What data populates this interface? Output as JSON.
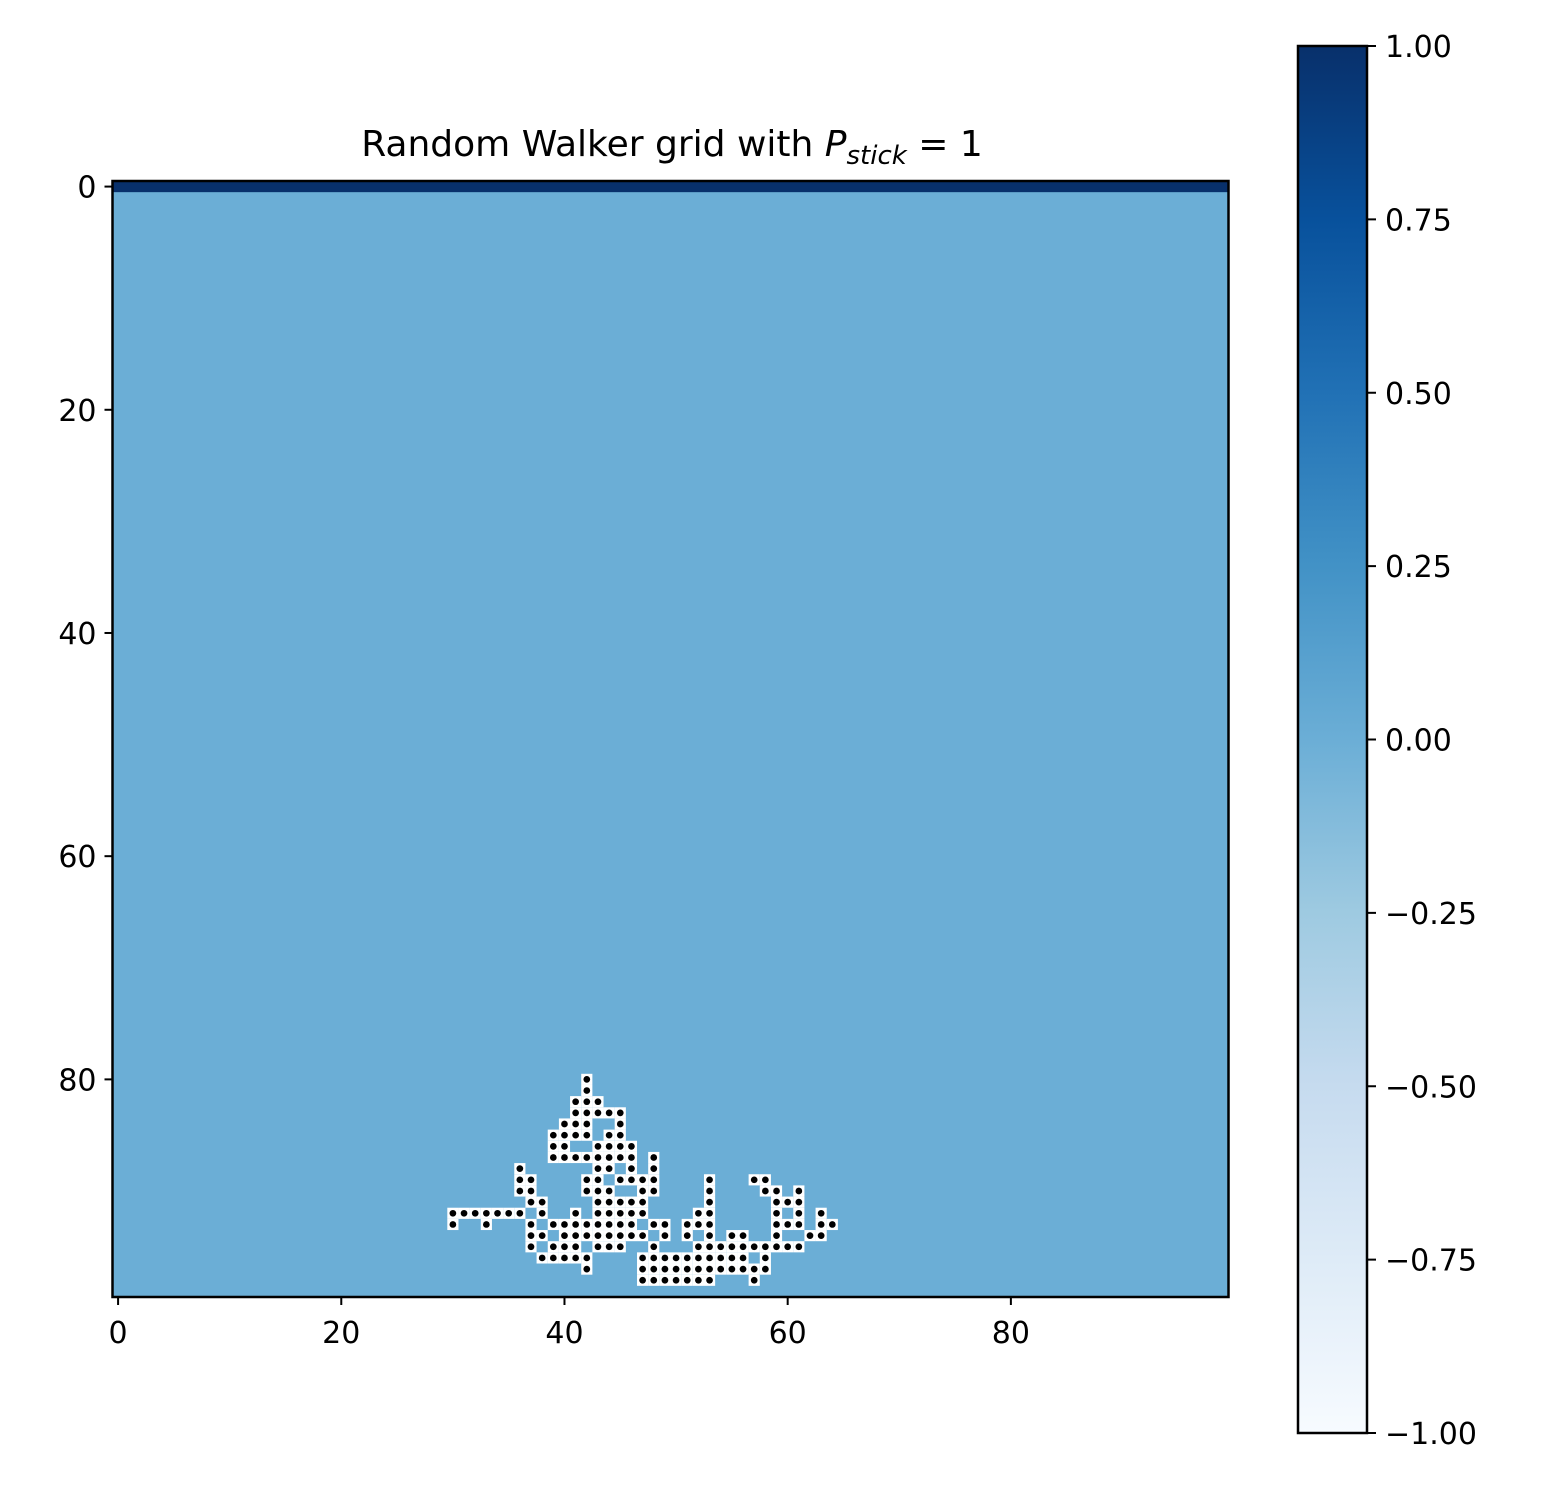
{
  "chart_data": {
    "type": "heatmap",
    "title": {
      "main": "Random Walker grid with ",
      "var": "P",
      "sub": "stick",
      "rest": " = 1"
    },
    "grid_size": [
      100,
      100
    ],
    "background_value": 0,
    "top_row_value": 1,
    "x_ticks": [
      "0",
      "20",
      "40",
      "60",
      "80"
    ],
    "y_ticks": [
      "0",
      "20",
      "40",
      "60",
      "80"
    ],
    "x_tick_values": [
      0,
      20,
      40,
      60,
      80
    ],
    "y_tick_values": [
      0,
      20,
      40,
      60,
      80
    ],
    "colorbar": {
      "colormap": "Blues",
      "range": [
        -1,
        1
      ],
      "ticks": [
        "1.00",
        "0.75",
        "0.50",
        "0.25",
        "0.00",
        "−0.25",
        "−0.50",
        "−0.75",
        "−1.00"
      ],
      "tick_values": [
        1.0,
        0.75,
        0.5,
        0.25,
        0.0,
        -0.25,
        -0.5,
        -0.75,
        -1.0
      ],
      "stops": [
        "#f7fbff",
        "#deebf7",
        "#c6dbef",
        "#9ecae1",
        "#6baed6",
        "#4292c6",
        "#2171b5",
        "#08519c",
        "#08306b"
      ]
    },
    "colors": {
      "background_cell": "#6baed6",
      "top_row_cell": "#08306b",
      "walker_marker": "#000000",
      "walker_cell_edge": "#ffffff"
    },
    "walkers": [
      [
        80,
        42
      ],
      [
        81,
        42
      ],
      [
        82,
        41
      ],
      [
        82,
        42
      ],
      [
        82,
        43
      ],
      [
        83,
        41
      ],
      [
        83,
        42
      ],
      [
        83,
        43
      ],
      [
        83,
        44
      ],
      [
        83,
        45
      ],
      [
        84,
        40
      ],
      [
        84,
        41
      ],
      [
        84,
        42
      ],
      [
        84,
        45
      ],
      [
        85,
        39
      ],
      [
        85,
        40
      ],
      [
        85,
        41
      ],
      [
        85,
        42
      ],
      [
        85,
        44
      ],
      [
        85,
        45
      ],
      [
        86,
        39
      ],
      [
        86,
        40
      ],
      [
        86,
        43
      ],
      [
        86,
        44
      ],
      [
        86,
        45
      ],
      [
        86,
        46
      ],
      [
        87,
        39
      ],
      [
        87,
        40
      ],
      [
        87,
        41
      ],
      [
        87,
        42
      ],
      [
        87,
        43
      ],
      [
        87,
        44
      ],
      [
        87,
        45
      ],
      [
        87,
        46
      ],
      [
        87,
        48
      ],
      [
        88,
        36
      ],
      [
        88,
        43
      ],
      [
        88,
        44
      ],
      [
        88,
        46
      ],
      [
        88,
        48
      ],
      [
        89,
        36
      ],
      [
        89,
        37
      ],
      [
        89,
        42
      ],
      [
        89,
        43
      ],
      [
        89,
        45
      ],
      [
        89,
        46
      ],
      [
        89,
        47
      ],
      [
        89,
        48
      ],
      [
        89,
        53
      ],
      [
        89,
        57
      ],
      [
        89,
        58
      ],
      [
        90,
        36
      ],
      [
        90,
        37
      ],
      [
        90,
        42
      ],
      [
        90,
        43
      ],
      [
        90,
        44
      ],
      [
        90,
        47
      ],
      [
        90,
        48
      ],
      [
        90,
        53
      ],
      [
        90,
        58
      ],
      [
        90,
        59
      ],
      [
        90,
        61
      ],
      [
        91,
        37
      ],
      [
        91,
        38
      ],
      [
        91,
        43
      ],
      [
        91,
        44
      ],
      [
        91,
        45
      ],
      [
        91,
        46
      ],
      [
        91,
        47
      ],
      [
        91,
        53
      ],
      [
        91,
        59
      ],
      [
        91,
        60
      ],
      [
        91,
        61
      ],
      [
        92,
        30
      ],
      [
        92,
        31
      ],
      [
        92,
        32
      ],
      [
        92,
        33
      ],
      [
        92,
        34
      ],
      [
        92,
        35
      ],
      [
        92,
        36
      ],
      [
        92,
        38
      ],
      [
        92,
        41
      ],
      [
        92,
        43
      ],
      [
        92,
        44
      ],
      [
        92,
        45
      ],
      [
        92,
        46
      ],
      [
        92,
        47
      ],
      [
        92,
        52
      ],
      [
        92,
        53
      ],
      [
        92,
        59
      ],
      [
        92,
        61
      ],
      [
        92,
        63
      ],
      [
        93,
        30
      ],
      [
        93,
        33
      ],
      [
        93,
        37
      ],
      [
        93,
        39
      ],
      [
        93,
        40
      ],
      [
        93,
        41
      ],
      [
        93,
        42
      ],
      [
        93,
        43
      ],
      [
        93,
        44
      ],
      [
        93,
        45
      ],
      [
        93,
        46
      ],
      [
        93,
        48
      ],
      [
        93,
        49
      ],
      [
        93,
        51
      ],
      [
        93,
        52
      ],
      [
        93,
        53
      ],
      [
        93,
        59
      ],
      [
        93,
        60
      ],
      [
        93,
        61
      ],
      [
        93,
        63
      ],
      [
        93,
        64
      ],
      [
        94,
        37
      ],
      [
        94,
        38
      ],
      [
        94,
        40
      ],
      [
        94,
        41
      ],
      [
        94,
        42
      ],
      [
        94,
        43
      ],
      [
        94,
        44
      ],
      [
        94,
        45
      ],
      [
        94,
        46
      ],
      [
        94,
        47
      ],
      [
        94,
        49
      ],
      [
        94,
        51
      ],
      [
        94,
        53
      ],
      [
        94,
        55
      ],
      [
        94,
        56
      ],
      [
        94,
        59
      ],
      [
        94,
        62
      ],
      [
        94,
        63
      ],
      [
        95,
        37
      ],
      [
        95,
        39
      ],
      [
        95,
        40
      ],
      [
        95,
        41
      ],
      [
        95,
        43
      ],
      [
        95,
        44
      ],
      [
        95,
        45
      ],
      [
        95,
        48
      ],
      [
        95,
        52
      ],
      [
        95,
        53
      ],
      [
        95,
        54
      ],
      [
        95,
        55
      ],
      [
        95,
        56
      ],
      [
        95,
        57
      ],
      [
        95,
        58
      ],
      [
        95,
        59
      ],
      [
        95,
        60
      ],
      [
        95,
        61
      ],
      [
        96,
        38
      ],
      [
        96,
        39
      ],
      [
        96,
        40
      ],
      [
        96,
        41
      ],
      [
        96,
        42
      ],
      [
        96,
        47
      ],
      [
        96,
        48
      ],
      [
        96,
        49
      ],
      [
        96,
        50
      ],
      [
        96,
        51
      ],
      [
        96,
        52
      ],
      [
        96,
        53
      ],
      [
        96,
        54
      ],
      [
        96,
        55
      ],
      [
        96,
        56
      ],
      [
        96,
        58
      ],
      [
        97,
        42
      ],
      [
        97,
        47
      ],
      [
        97,
        48
      ],
      [
        97,
        49
      ],
      [
        97,
        50
      ],
      [
        97,
        51
      ],
      [
        97,
        52
      ],
      [
        97,
        53
      ],
      [
        97,
        54
      ],
      [
        97,
        55
      ],
      [
        97,
        56
      ],
      [
        97,
        57
      ],
      [
        97,
        58
      ],
      [
        98,
        47
      ],
      [
        98,
        48
      ],
      [
        98,
        49
      ],
      [
        98,
        50
      ],
      [
        98,
        51
      ],
      [
        98,
        52
      ],
      [
        98,
        53
      ],
      [
        98,
        57
      ]
    ]
  }
}
